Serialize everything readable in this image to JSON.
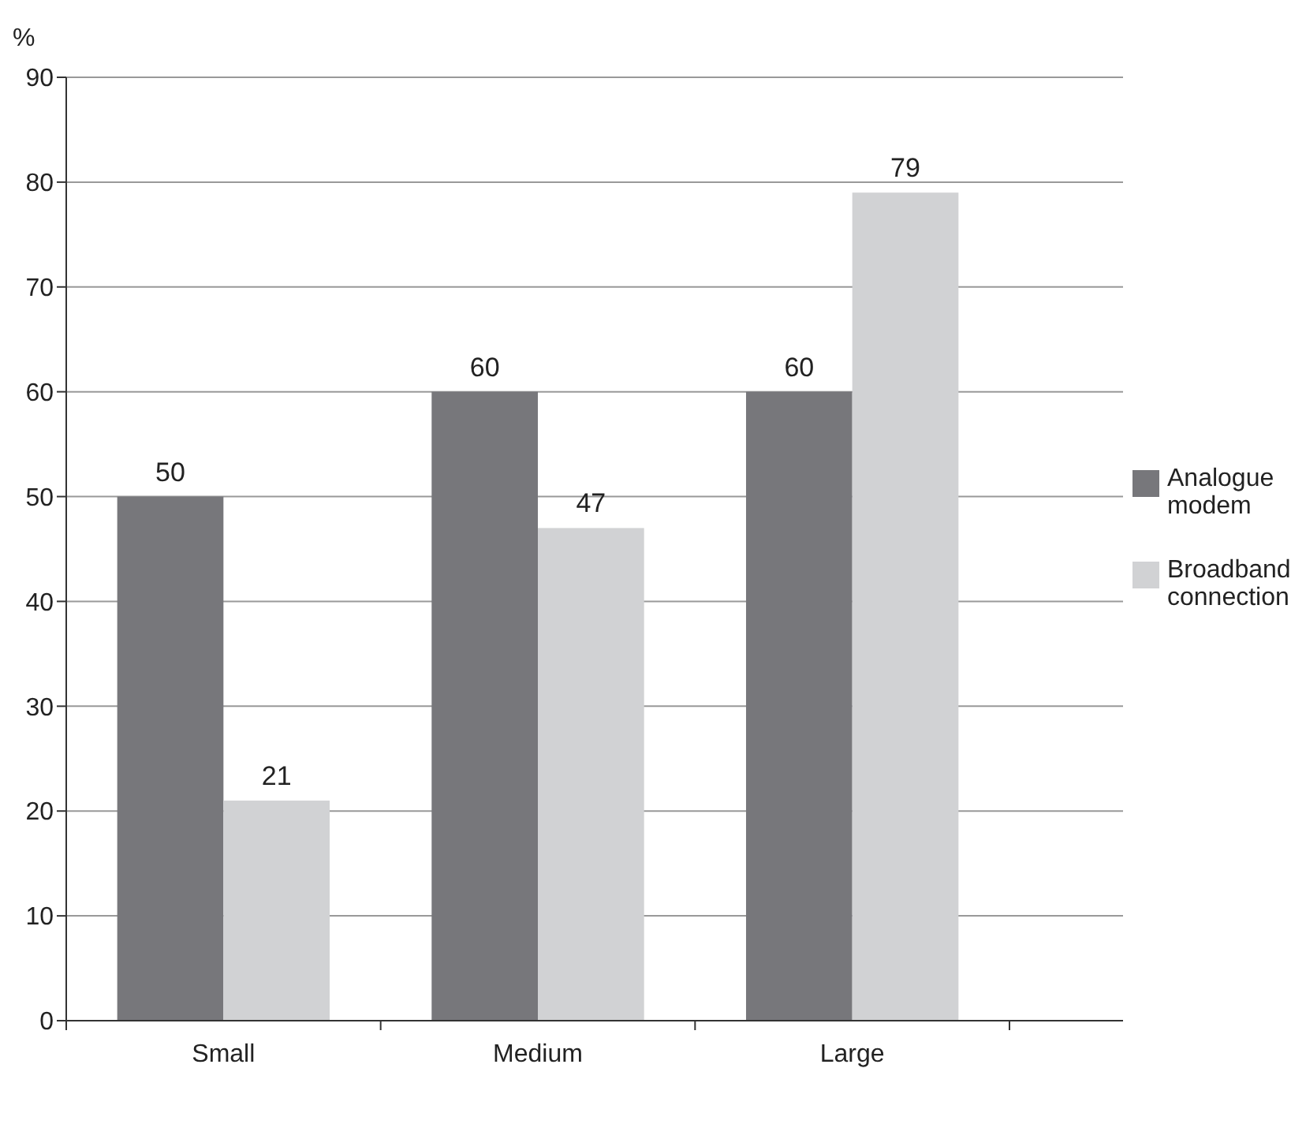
{
  "chart_data": {
    "type": "bar",
    "ylabel": "%",
    "categories": [
      "Small",
      "Medium",
      "Large"
    ],
    "series": [
      {
        "name": "Analogue modem",
        "color": "#77777b",
        "values": [
          50,
          60,
          60
        ]
      },
      {
        "name": "Broadband connection",
        "color": "#d1d2d4",
        "values": [
          21,
          47,
          79
        ]
      }
    ],
    "ylim": [
      0,
      90
    ],
    "yticks": [
      0,
      10,
      20,
      30,
      40,
      50,
      60,
      70,
      80,
      90
    ],
    "grid": "y",
    "legend": "right",
    "data_labels": true
  }
}
